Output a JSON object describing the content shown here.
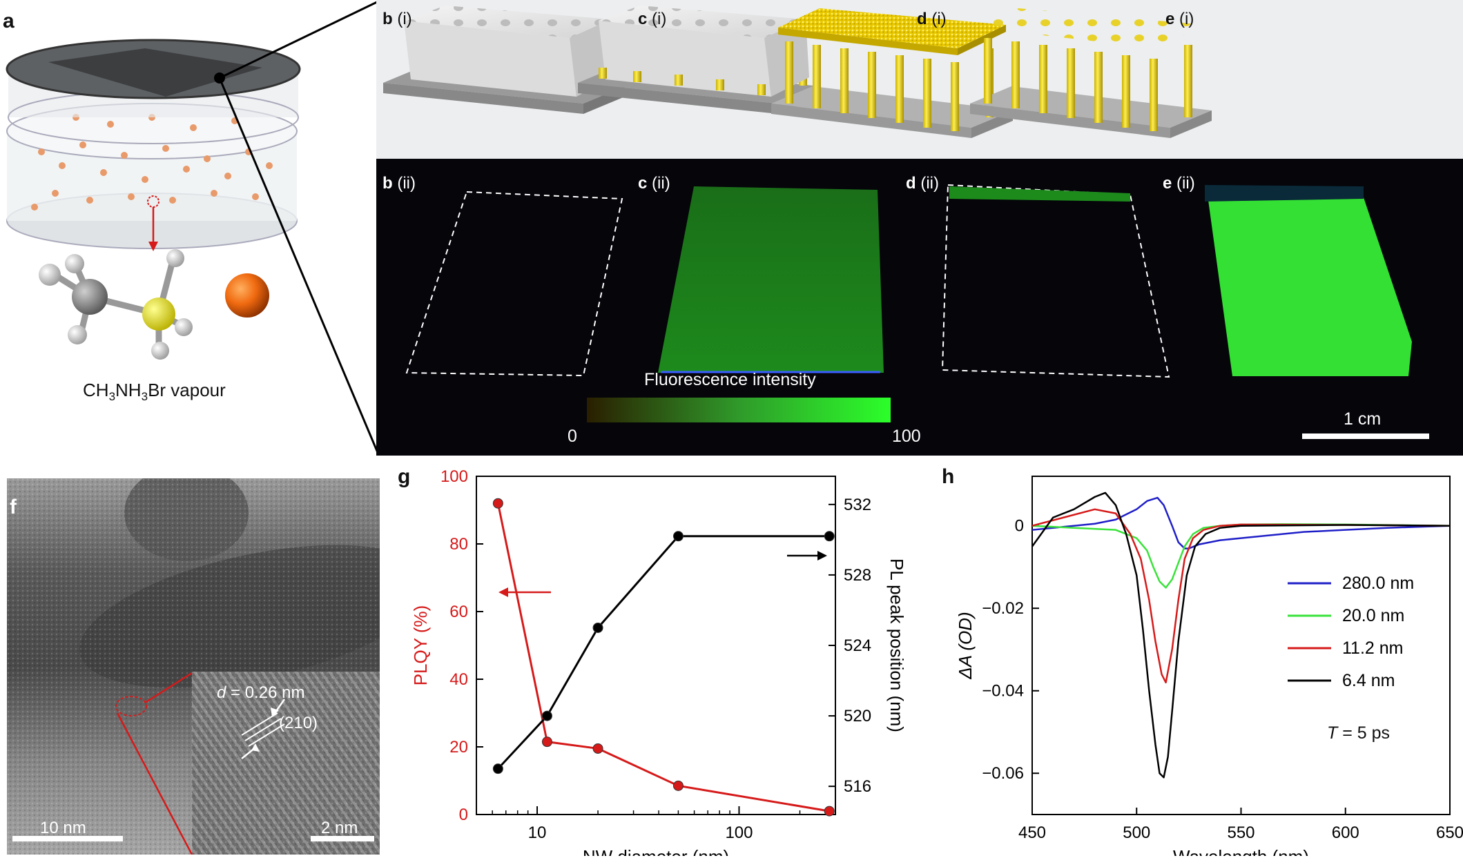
{
  "panels": {
    "a": {
      "letter": "a",
      "caption_main": "CH",
      "sub1": "3",
      "mid": "NH",
      "sub2": "3",
      "tail": "Br vapour"
    },
    "b": {
      "top": {
        "letter": "b",
        "roman": "(i)"
      },
      "bottom": {
        "letter": "b",
        "roman": "(ii)"
      }
    },
    "c": {
      "top": {
        "letter": "c",
        "roman": "(i)"
      },
      "bottom": {
        "letter": "c",
        "roman": "(ii)"
      }
    },
    "d": {
      "top": {
        "letter": "d",
        "roman": "(i)"
      },
      "bottom": {
        "letter": "d",
        "roman": "(ii)"
      }
    },
    "e": {
      "top": {
        "letter": "e",
        "roman": "(i)"
      },
      "bottom": {
        "letter": "e",
        "roman": "(ii)"
      }
    },
    "fluor": {
      "title": "Fluorescence intensity",
      "min": "0",
      "max": "100",
      "scalebar": "1 cm"
    },
    "f": {
      "letter": "f",
      "d_label": "d",
      "d_value": " = 0.26 nm",
      "plane": "(210)",
      "scale_main": "10 nm",
      "scale_inset": "2 nm"
    },
    "g": {
      "letter": "g"
    },
    "h": {
      "letter": "h",
      "temp_label": "T",
      "temp_value": " = 5 ps"
    }
  },
  "colors": {
    "green": "#39e23a",
    "red": "#d61a1a",
    "blue": "#1f1fc8",
    "black": "#000000",
    "yellow": "#e8d020",
    "grey": "#d8d8d8"
  },
  "chart_data": [
    {
      "id": "g",
      "type": "scatter",
      "xlabel": "NW diameter (nm)",
      "ylabel": "PLQY (%)",
      "y2label": "PL peak position (nm)",
      "xscale": "log",
      "xlim": [
        5,
        300
      ],
      "ylim": [
        0,
        100
      ],
      "y2lim": [
        514.4,
        533.6
      ],
      "xticks": [
        10,
        100
      ],
      "xtick_labels": [
        "10",
        "100"
      ],
      "yticks": [
        0,
        20,
        40,
        60,
        80,
        100
      ],
      "y2ticks": [
        516,
        520,
        524,
        528,
        532
      ],
      "series": [
        {
          "axis": "left",
          "color": "#d61a1a",
          "x": [
            6.4,
            11.2,
            20.0,
            50.0,
            280.0
          ],
          "y": [
            92,
            21.5,
            19.5,
            8.5,
            1
          ]
        },
        {
          "axis": "right",
          "color": "#000000",
          "x": [
            6.4,
            11.2,
            20.0,
            50.0,
            280.0
          ],
          "y": [
            517.0,
            520.0,
            525.0,
            530.2,
            530.2
          ]
        }
      ]
    },
    {
      "id": "h",
      "type": "line",
      "xlabel": "Wavelength (nm)",
      "ylabel": "ΔA (OD)",
      "xlim": [
        450,
        650
      ],
      "ylim": [
        -0.07,
        0.012
      ],
      "xticks": [
        450,
        500,
        550,
        600,
        650
      ],
      "yticks": [
        0,
        -0.02,
        -0.04,
        -0.06
      ],
      "ytick_labels": [
        "0",
        "−0.02",
        "−0.04",
        "−0.06"
      ],
      "legend": "right",
      "series": [
        {
          "name": "280.0 nm",
          "color": "#1f1fc8",
          "x": [
            450,
            460,
            470,
            480,
            490,
            500,
            505,
            510,
            513,
            517,
            520,
            523,
            525,
            530,
            540,
            550,
            560,
            580,
            600,
            620,
            650
          ],
          "y": [
            -0.001,
            -0.0005,
            0,
            0.0005,
            0.0015,
            0.004,
            0.006,
            0.0068,
            0.005,
            0.0,
            -0.004,
            -0.0055,
            -0.0055,
            -0.0045,
            -0.0035,
            -0.003,
            -0.0025,
            -0.0015,
            -0.001,
            -0.0005,
            0
          ]
        },
        {
          "name": "20.0 nm",
          "color": "#39e23a",
          "x": [
            450,
            470,
            490,
            500,
            505,
            508,
            511,
            514,
            517,
            520,
            523,
            527,
            532,
            540,
            550,
            570,
            600,
            650
          ],
          "y": [
            0,
            -0.0005,
            -0.001,
            -0.003,
            -0.006,
            -0.01,
            -0.0135,
            -0.015,
            -0.013,
            -0.009,
            -0.005,
            -0.002,
            -0.0005,
            0,
            0.0003,
            0.0004,
            0.0003,
            0
          ]
        },
        {
          "name": "11.2 nm",
          "color": "#d61a1a",
          "x": [
            450,
            465,
            480,
            490,
            497,
            502,
            506,
            509,
            512,
            514,
            517,
            520,
            523,
            527,
            532,
            540,
            550,
            600,
            650
          ],
          "y": [
            0,
            0.002,
            0.004,
            0.003,
            -0.002,
            -0.008,
            -0.018,
            -0.028,
            -0.036,
            -0.038,
            -0.03,
            -0.018,
            -0.008,
            -0.003,
            -0.001,
            0,
            0.0003,
            0.0002,
            0
          ]
        },
        {
          "name": "6.4 nm",
          "color": "#000000",
          "x": [
            450,
            460,
            470,
            480,
            485,
            490,
            495,
            500,
            503,
            506,
            509,
            511,
            513,
            515,
            517,
            520,
            524,
            528,
            533,
            540,
            550,
            600,
            650
          ],
          "y": [
            -0.005,
            0.002,
            0.004,
            0.007,
            0.008,
            0.005,
            -0.002,
            -0.012,
            -0.025,
            -0.04,
            -0.053,
            -0.06,
            -0.061,
            -0.056,
            -0.045,
            -0.028,
            -0.012,
            -0.005,
            -0.002,
            -0.0005,
            0,
            0.0002,
            0
          ]
        }
      ]
    }
  ]
}
